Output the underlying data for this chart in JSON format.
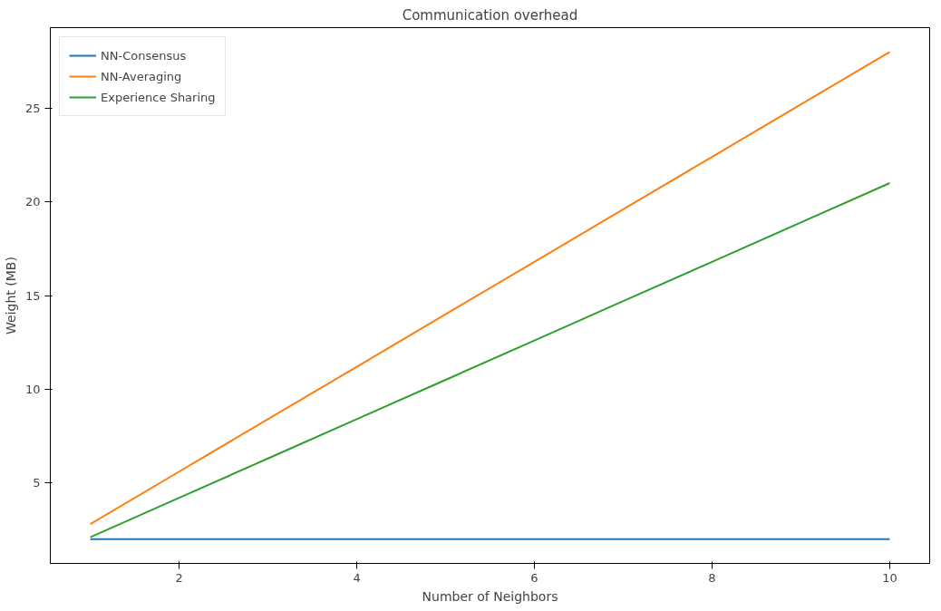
{
  "chart_data": {
    "type": "line",
    "title": "Communication overhead",
    "xlabel": "Number of Neighbors",
    "ylabel": "Weight (MB)",
    "x": [
      1,
      2,
      3,
      4,
      5,
      6,
      7,
      8,
      9,
      10
    ],
    "series": [
      {
        "name": "NN-Consensus",
        "color": "#1f77b4",
        "values": [
          2,
          2,
          2,
          2,
          2,
          2,
          2,
          2,
          2,
          2
        ]
      },
      {
        "name": "NN-Averaging",
        "color": "#ff7f0e",
        "values": [
          2.8,
          5.6,
          8.4,
          11.2,
          14,
          16.8,
          19.6,
          22.4,
          25.2,
          28
        ]
      },
      {
        "name": "Experience Sharing",
        "color": "#2ca02c",
        "values": [
          2.1,
          4.2,
          6.3,
          8.4,
          10.5,
          12.6,
          14.7,
          16.8,
          18.9,
          21
        ]
      }
    ],
    "xlim": [
      0.55,
      10.45
    ],
    "ylim": [
      0.7,
      29.3
    ],
    "xticks": [
      2,
      4,
      6,
      8,
      10
    ],
    "yticks": [
      5,
      10,
      15,
      20,
      25
    ],
    "grid": false,
    "legend": "top left",
    "marker": "none",
    "line_style": "solid"
  }
}
